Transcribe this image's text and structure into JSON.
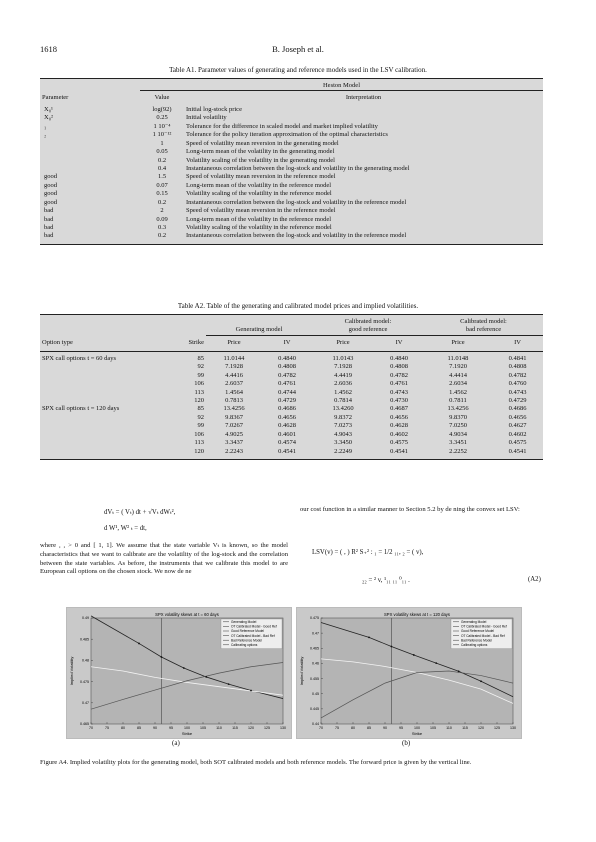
{
  "header": {
    "page_number": "1618",
    "authors": "B. Joseph et al."
  },
  "tableA1": {
    "caption": "Table  A1.  Parameter values of generating and reference models used in the LSV calibration.",
    "group_header": "Heston Model",
    "col_param": "Parameter",
    "col_value": "Value",
    "col_interp": "Interpretation",
    "rows": [
      {
        "param": "X₀¹",
        "value": "log(92)",
        "interp": "Initial log-stock price"
      },
      {
        "param": "X₀²",
        "value": "0.25",
        "interp": "Initial volatility"
      },
      {
        "param": "₁",
        "value": "1     10⁻⁴",
        "interp": "Tolerance for the difference in scaled model and market implied volatility"
      },
      {
        "param": "₂",
        "value": "1     10⁻¹²",
        "interp": "Tolerance for the policy iteration approximation of the optimal characteristics"
      },
      {
        "param": "",
        "value": "1",
        "interp": "Speed of volatility mean reversion in the generating model"
      },
      {
        "param": "",
        "value": "0.05",
        "interp": "Long-term mean of the volatility in the generating model"
      },
      {
        "param": "",
        "value": "0.2",
        "interp": "Volatility scaling of the volatility in the generating model"
      },
      {
        "param": "",
        "value": "0.4",
        "interp": "Instantaneous correlation between the log-stock and volatility in the generating model"
      },
      {
        "param": "good",
        "value": "1.5",
        "interp": "Speed of volatility mean reversion in the reference model"
      },
      {
        "param": "good",
        "value": "0.07",
        "interp": "Long-term mean of the volatility in the reference model"
      },
      {
        "param": "good",
        "value": "0.15",
        "interp": "Volatility scaling of the volatility in the reference model"
      },
      {
        "param": "good",
        "value": "0.2",
        "interp": "Instantaneous correlation between the log-stock and volatility in the reference model"
      },
      {
        "param": "bad",
        "value": "2",
        "interp": "Speed of volatility mean reversion in the reference model"
      },
      {
        "param": "bad",
        "value": "0.09",
        "interp": "Long-term mean of the volatility in the reference model"
      },
      {
        "param": "bad",
        "value": "0.3",
        "interp": "Volatility scaling of the volatility in the reference model"
      },
      {
        "param": "bad",
        "value": "0.2",
        "interp": "Instantaneous correlation between the log-stock and volatility in the reference model"
      }
    ]
  },
  "tableA2": {
    "caption": "Table  A2.  Table of the generating and calibrated model prices and implied volatilities.",
    "grp1": "Generating model",
    "grp2a": "Calibrated model:",
    "grp2b": "good reference",
    "grp3a": "Calibrated model:",
    "grp3b": "bad reference",
    "col_type": "Option type",
    "col_strike": "Strike",
    "col_price": "Price",
    "col_iv": "IV",
    "label_60": "SPX call options  t  =  60 days",
    "label_120": "SPX call options  t  =  120 days",
    "rows": [
      [
        "85",
        "11.0144",
        "0.4840",
        "11.0143",
        "0.4840",
        "11.0148",
        "0.4841"
      ],
      [
        "92",
        "7.1928",
        "0.4808",
        "7.1928",
        "0.4808",
        "7.1920",
        "0.4808"
      ],
      [
        "99",
        "4.4416",
        "0.4782",
        "4.4419",
        "0.4782",
        "4.4414",
        "0.4782"
      ],
      [
        "106",
        "2.6037",
        "0.4761",
        "2.6036",
        "0.4761",
        "2.6034",
        "0.4760"
      ],
      [
        "113",
        "1.4564",
        "0.4744",
        "1.4562",
        "0.4743",
        "1.4562",
        "0.4743"
      ],
      [
        "120",
        "0.7813",
        "0.4729",
        "0.7814",
        "0.4730",
        "0.7811",
        "0.4729"
      ],
      [
        "85",
        "13.4256",
        "0.4686",
        "13.4260",
        "0.4687",
        "13.4256",
        "0.4686"
      ],
      [
        "92",
        "9.8367",
        "0.4656",
        "9.8372",
        "0.4656",
        "9.8370",
        "0.4656"
      ],
      [
        "99",
        "7.0267",
        "0.4628",
        "7.0273",
        "0.4628",
        "7.0250",
        "0.4627"
      ],
      [
        "106",
        "4.9025",
        "0.4601",
        "4.9043",
        "0.4602",
        "4.9034",
        "0.4602"
      ],
      [
        "113",
        "3.3437",
        "0.4574",
        "3.3450",
        "0.4575",
        "3.3451",
        "0.4575"
      ],
      [
        "120",
        "2.2243",
        "0.4541",
        "2.2249",
        "0.4541",
        "2.2252",
        "0.4541"
      ]
    ]
  },
  "text": {
    "eq1a": "dVₜ =   (       Vₜ) dt +      √Vₜ dWₜ²,",
    "eq1b": "d W¹, W² ₜ =      dt,",
    "para_left": "where   ,   ,   > 0 and      [ 1, 1]. We assume that the state variable Vₜ is known, so the model characteristics that we want to calibrate are the volatility of the log-stock and the correlation between the state variables. As before, the instruments that we calibrate this model to are European call options on the chosen stock. We now de ne",
    "para_right": "our cost function in a similar manner to Section 5.2 by de ning the convex set  LSV:",
    "eq2": "LSV(v) =   (  ,  )    R²  S₊² :  ₁ =      1/2  ₁₁,  ₂ =   (     v),",
    "eq3": "₂₂ =   ² v,  ¹₁₁      ₁₁      ⁰₁₁  .",
    "eq_num": "(A2)"
  },
  "figure": {
    "panel_a_title": "SPX volatility skews at t = 60 days",
    "panel_b_title": "SPX volatility skews at t = 120 days",
    "xlabel": "Strike",
    "ylabel": "Implied Volatility",
    "legend": [
      "Generating Model",
      "OT Calibrated Model - Good Ref",
      "Good Reference Model",
      "OT Calibrated Model - Bad Ref",
      "Bad Reference Model",
      "Calibrating options"
    ],
    "label_a": "(a)",
    "label_b": "(b)",
    "caption": "Figure A4.  Implied volatility plots for the generating model, both SOT calibrated models and both reference models. The forward price is given by the vertical line."
  },
  "chart_data": [
    {
      "type": "line",
      "title": "SPX volatility skews at t = 60 days",
      "xlabel": "Strike",
      "ylabel": "Implied Volatility",
      "xlim": [
        70,
        130
      ],
      "ylim": [
        0.465,
        0.49
      ],
      "xticks": [
        70,
        75,
        80,
        85,
        90,
        95,
        100,
        105,
        110,
        115,
        120,
        125,
        130
      ],
      "yticks": [
        0.465,
        0.47,
        0.475,
        0.48,
        0.485,
        0.49
      ],
      "forward": 92,
      "series": [
        {
          "name": "Generating Model",
          "x": [
            70,
            85,
            92,
            99,
            106,
            113,
            120,
            130
          ],
          "y": [
            0.4905,
            0.484,
            0.4808,
            0.4782,
            0.4761,
            0.4744,
            0.4729,
            0.471
          ]
        },
        {
          "name": "Good Reference Model",
          "x": [
            70,
            80,
            90,
            100,
            110,
            120,
            130
          ],
          "y": [
            0.4785,
            0.4775,
            0.476,
            0.4748,
            0.4738,
            0.4728,
            0.4718
          ]
        },
        {
          "name": "Bad Reference Model",
          "x": [
            70,
            80,
            90,
            100,
            110,
            120,
            130
          ],
          "y": [
            0.4685,
            0.4708,
            0.473,
            0.4752,
            0.477,
            0.4785,
            0.4795
          ]
        },
        {
          "name": "Calibrating options",
          "x": [
            85,
            92,
            99,
            106,
            113,
            120
          ],
          "y": [
            0.484,
            0.4808,
            0.4782,
            0.4761,
            0.4744,
            0.4729
          ]
        }
      ]
    },
    {
      "type": "line",
      "title": "SPX volatility skews at t = 120 days",
      "xlabel": "Strike",
      "ylabel": "Implied Volatility",
      "xlim": [
        70,
        130
      ],
      "ylim": [
        0.44,
        0.475
      ],
      "xticks": [
        70,
        75,
        80,
        85,
        90,
        95,
        100,
        105,
        110,
        115,
        120,
        125,
        130
      ],
      "yticks": [
        0.44,
        0.445,
        0.45,
        0.455,
        0.46,
        0.465,
        0.47,
        0.475
      ],
      "forward": 92,
      "series": [
        {
          "name": "Generating Model",
          "x": [
            70,
            85,
            92,
            99,
            106,
            113,
            120,
            130
          ],
          "y": [
            0.4735,
            0.4686,
            0.4656,
            0.4628,
            0.4601,
            0.4574,
            0.4541,
            0.449
          ]
        },
        {
          "name": "Good Reference Model",
          "x": [
            70,
            80,
            90,
            100,
            110,
            120,
            130
          ],
          "y": [
            0.4615,
            0.4605,
            0.459,
            0.457,
            0.4545,
            0.4515,
            0.4468
          ]
        },
        {
          "name": "Bad Reference Model",
          "x": [
            70,
            80,
            90,
            100,
            110,
            120,
            130
          ],
          "y": [
            0.442,
            0.448,
            0.4535,
            0.457,
            0.4575,
            0.456,
            0.4535
          ]
        },
        {
          "name": "Calibrating options",
          "x": [
            85,
            92,
            99,
            106,
            113,
            120
          ],
          "y": [
            0.4686,
            0.4656,
            0.4628,
            0.4601,
            0.4574,
            0.4541
          ]
        }
      ]
    }
  ]
}
